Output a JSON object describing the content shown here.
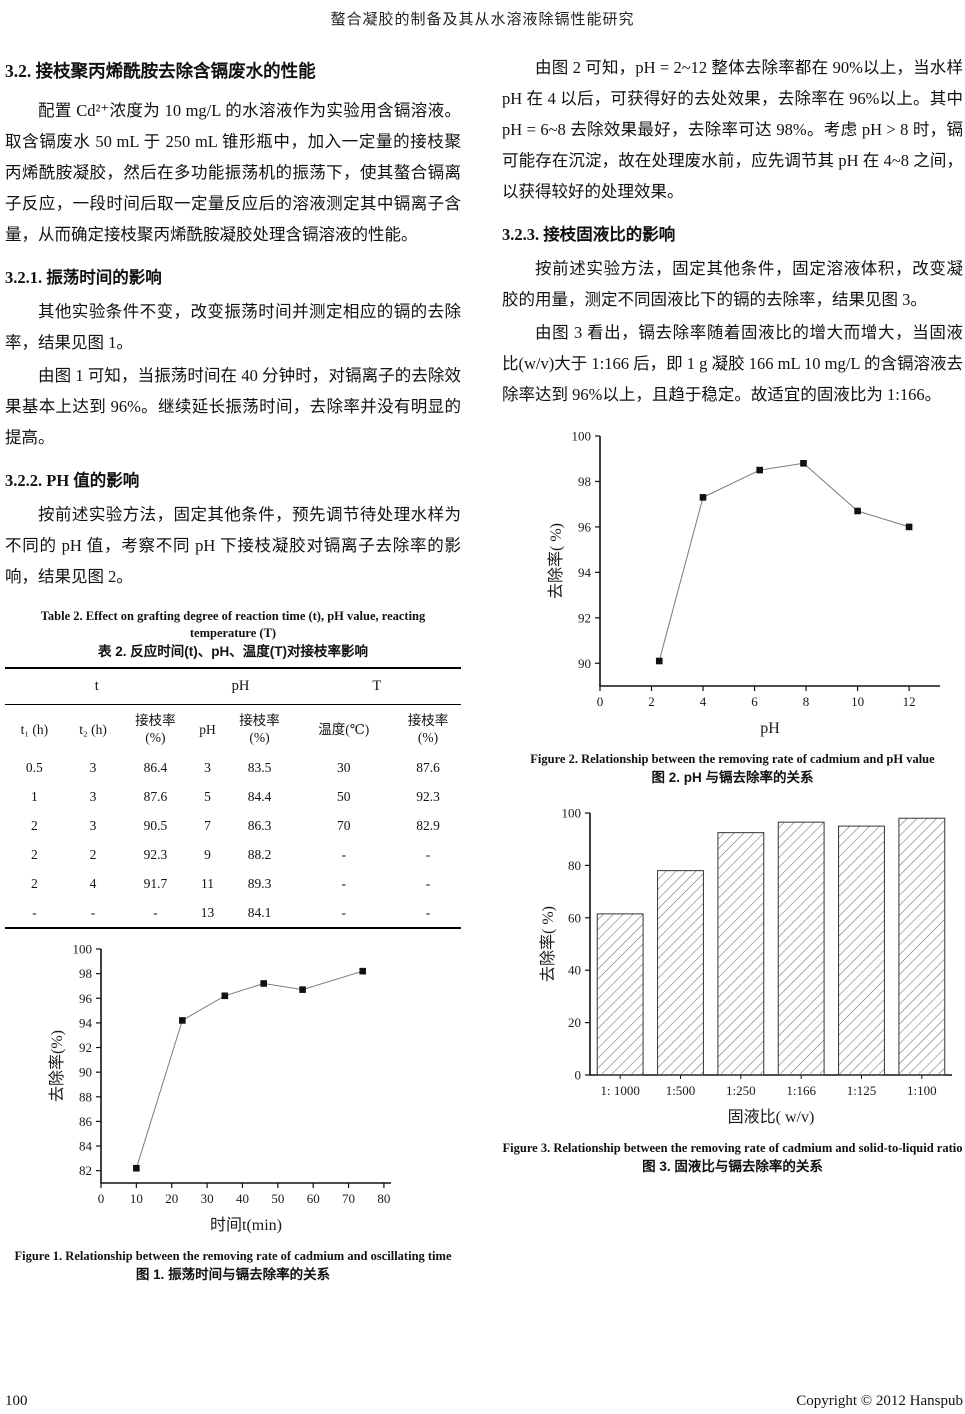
{
  "page": {
    "header_title": "螯合凝胶的制备及其从水溶液除镉性能研究",
    "footer_page_number": "100",
    "footer_copyright": "Copyright © 2012 Hanspub"
  },
  "left": {
    "section_title": "3.2. 接枝聚丙烯酰胺去除含镉废水的性能",
    "para1": "配置 Cd²⁺浓度为 10 mg/L 的水溶液作为实验用含镉溶液。取含镉废水 50 mL 于 250 mL 锥形瓶中，加入一定量的接枝聚丙烯酰胺凝胶，然后在多功能振荡机的振荡下，使其螯合镉离子反应，一段时间后取一定量反应后的溶液测定其中镉离子含量，从而确定接枝聚丙烯酰胺凝胶处理含镉溶液的性能。",
    "sub1_title": "3.2.1. 振荡时间的影响",
    "para2": "其他实验条件不变，改变振荡时间并测定相应的镉的去除率，结果见图 1。",
    "para3": "由图 1 可知，当振荡时间在 40 分钟时，对镉离子的去除效果基本上达到 96%。继续延长振荡时间，去除率并没有明显的提高。",
    "sub2_title": "3.2.2. PH 值的影响",
    "para4": "按前述实验方法，固定其他条件，预先调节待处理水样为不同的 pH 值，考察不同 pH 下接枝凝胶对镉离子去除率的影响，结果见图 2。"
  },
  "right": {
    "para1": "由图 2 可知，pH = 2~12 整体去除率都在 90%以上，当水样 pH 在 4 以后，可获得好的去处效果，去除率在 96%以上。其中 pH = 6~8 去除效果最好，去除率可达 98%。考虑 pH > 8 时，镉可能存在沉淀，故在处理废水前，应先调节其 pH 在 4~8 之间，以获得较好的处理效果。",
    "sub_title": "3.2.3. 接枝固液比的影响",
    "para2": "按前述实验方法，固定其他条件，固定溶液体积，改变凝胶的用量，测定不同固液比下的镉的去除率，结果见图 3。",
    "para3": "由图 3 看出，镉去除率随着固液比的增大而增大，当固液比(w/v)大于 1:166 后，即 1 g 凝胶 166 mL 10 mg/L 的含镉溶液去除率达到 96%以上，且趋于稳定。故适宜的固液比为 1:166。"
  },
  "table2": {
    "caption_en": "Table 2. Effect on grafting degree of reaction time (t), pH value, reacting temperature (T)",
    "caption_zh": "表 2. 反应时间(t)、pH、温度(T)对接枝率影响",
    "group_headers": [
      {
        "label": "t",
        "span": 3
      },
      {
        "label": "pH",
        "span": 2
      },
      {
        "label": "T",
        "span": 2
      }
    ],
    "column_headers": [
      "t₁ (h)",
      "t₂ (h)",
      "接枝率 (%)",
      "pH",
      "接枝率 (%)",
      "温度(℃)",
      "接枝率 (%)"
    ],
    "rows": [
      [
        "0.5",
        "3",
        "86.4",
        "3",
        "83.5",
        "30",
        "87.6"
      ],
      [
        "1",
        "3",
        "87.6",
        "5",
        "84.4",
        "50",
        "92.3"
      ],
      [
        "2",
        "3",
        "90.5",
        "7",
        "86.3",
        "70",
        "82.9"
      ],
      [
        "2",
        "2",
        "92.3",
        "9",
        "88.2",
        "-",
        "-"
      ],
      [
        "2",
        "4",
        "91.7",
        "11",
        "89.3",
        "-",
        "-"
      ],
      [
        "-",
        "-",
        "-",
        "13",
        "84.1",
        "-",
        "-"
      ]
    ]
  },
  "figures": {
    "fig1": {
      "caption_en": "Figure 1. Relationship between the removing rate of cadmium and oscillating time",
      "caption_zh": "图 1. 振荡时间与镉去除率的关系"
    },
    "fig2": {
      "caption_en": "Figure 2. Relationship between the removing rate of cadmium and pH value",
      "caption_zh": "图 2. pH 与镉去除率的关系"
    },
    "fig3": {
      "caption_en": "Figure 3. Relationship between the removing rate of cadmium and solid-to-liquid ratio",
      "caption_zh": "图 3. 固液比与镉去除率的关系"
    }
  },
  "chart_data": [
    {
      "id": "fig1",
      "type": "line",
      "marker": "square",
      "x": [
        10,
        23,
        35,
        46,
        57,
        74
      ],
      "y": [
        82.2,
        94.2,
        96.2,
        97.2,
        96.7,
        98.2
      ],
      "xlabel": "时间t(min)",
      "ylabel": "去除率(%)",
      "xlim": [
        0,
        82
      ],
      "ylim": [
        81,
        100
      ],
      "xticks": [
        0,
        10,
        20,
        30,
        40,
        50,
        60,
        70,
        80
      ],
      "yticks": [
        82,
        84,
        86,
        88,
        90,
        92,
        94,
        96,
        98,
        100
      ],
      "grid": false,
      "legend": "none"
    },
    {
      "id": "fig2",
      "type": "line",
      "marker": "square",
      "x": [
        2.3,
        4,
        6.2,
        7.9,
        10,
        12
      ],
      "y": [
        90.1,
        97.3,
        98.5,
        98.8,
        96.7,
        96.0
      ],
      "xlabel": "pH",
      "ylabel": "去除率( %)",
      "xlim": [
        0,
        13.2
      ],
      "ylim": [
        89,
        100
      ],
      "xticks": [
        0,
        2,
        4,
        6,
        8,
        10,
        12
      ],
      "yticks": [
        90,
        92,
        94,
        96,
        98,
        100
      ],
      "grid": false,
      "legend": "none"
    },
    {
      "id": "fig3",
      "type": "bar",
      "hatch": "diagonal",
      "categories": [
        "1: 1000",
        "1:500",
        "1:250",
        "1:166",
        "1:125",
        "1:100"
      ],
      "values": [
        61.5,
        78,
        92.5,
        96.5,
        95,
        98
      ],
      "xlabel": "固液比( w/v)",
      "ylabel": "去除率( %)",
      "ylim": [
        0,
        100
      ],
      "yticks": [
        0,
        20,
        40,
        60,
        80,
        100
      ],
      "grid": false,
      "legend": "none"
    }
  ]
}
